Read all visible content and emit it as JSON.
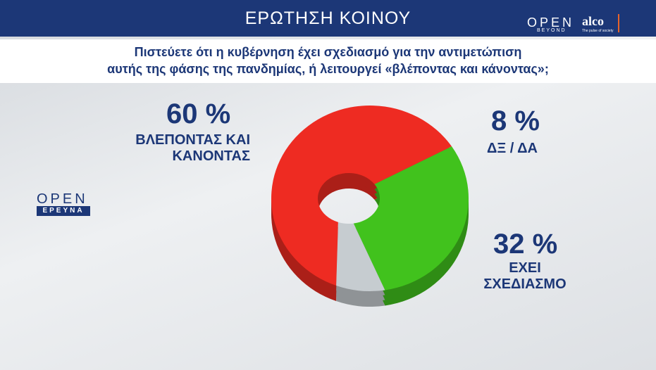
{
  "header": {
    "title": "ΕΡΩΤΗΣΗ ΚΟΙΝΟΥ",
    "logo_open": "OPEN",
    "logo_open_sub": "BEYOND",
    "logo_alco": "alco",
    "logo_alco_sub": "The pulse of society"
  },
  "side_logo": {
    "title": "OPEN",
    "subtitle": "ΕΡΕΥΝΑ"
  },
  "chart_data": {
    "type": "pie",
    "title": [
      "Πιστεύετε ότι η κυβέρνηση έχει σχεδιασμό για την αντιμετώπιση",
      "αυτής της φάσης της πανδημίας, ή λειτουργεί «βλέποντας και κάνοντας»;"
    ],
    "categories": [
      "ΒΛΕΠΟΝΤΑΣ ΚΑΙ ΚΑΝΟΝΤΑΣ",
      "ΕΧΕΙ ΣΧΕΔΙΑΣΜΟ",
      "ΔΞ / ΔΑ"
    ],
    "values": [
      60,
      32,
      8
    ],
    "value_labels": [
      "60 %",
      "32 %",
      "8 %"
    ],
    "colors": [
      "#ee2b22",
      "#41c21d",
      "#c6ccd0"
    ]
  }
}
